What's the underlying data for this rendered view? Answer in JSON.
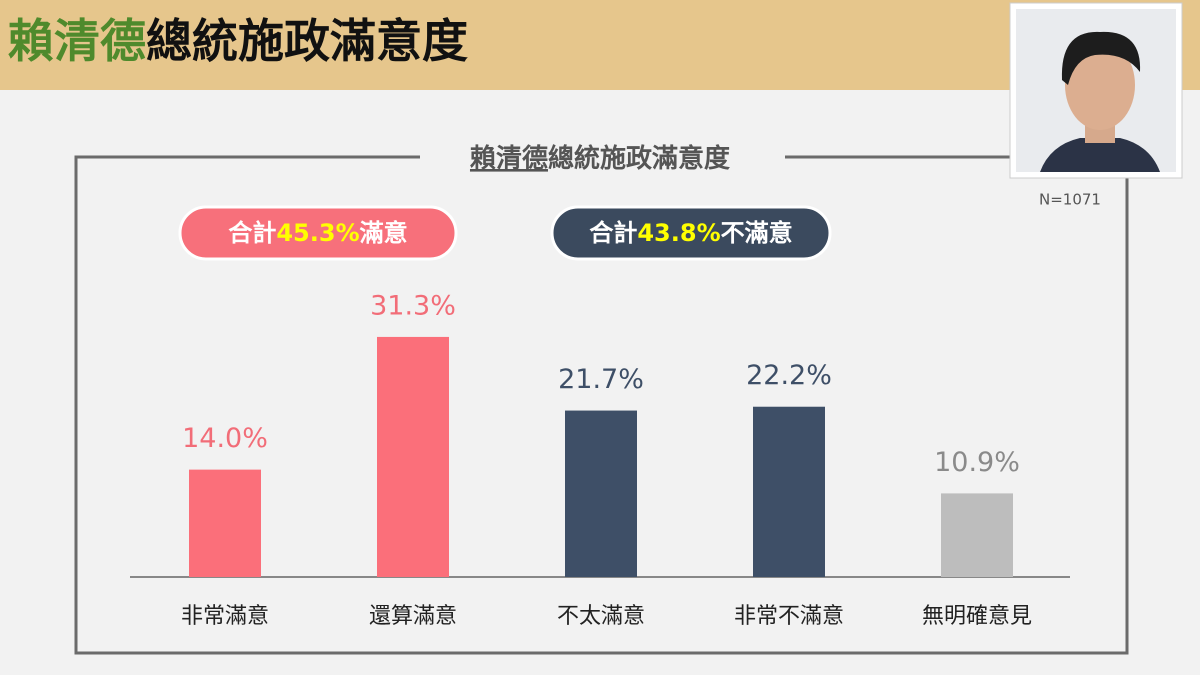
{
  "header": {
    "title": [
      "賴清德",
      "總統施政滿意度"
    ]
  },
  "sample_size": "N=1071",
  "chart_data": {
    "type": "bar",
    "title": [
      "賴清德",
      "總統施政滿意度"
    ],
    "summaries": [
      {
        "prefix": "合計",
        "figure": "45.3%",
        "suffix": "滿意",
        "color": "#f7707b"
      },
      {
        "prefix": "合計",
        "figure": "43.8%",
        "suffix": "不滿意",
        "color": "#3b4a5e"
      }
    ],
    "categories": [
      "非常滿意",
      "還算滿意",
      "不太滿意",
      "非常不滿意",
      "無明確意見"
    ],
    "values": [
      14.0,
      31.3,
      21.7,
      22.2,
      10.9
    ],
    "value_labels": [
      "14.0%",
      "31.3%",
      "21.7%",
      "22.2%",
      "10.9%"
    ],
    "colors": [
      "#fb6f7a",
      "#fb6f7a",
      "#3e4f67",
      "#3e4f67",
      "#bdbdbd"
    ],
    "label_colors": [
      "#f26d78",
      "#f26d78",
      "#3e4f67",
      "#3e4f67",
      "#8a8a8a"
    ]
  }
}
